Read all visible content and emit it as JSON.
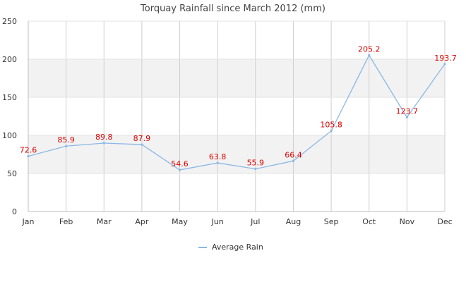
{
  "chart_data": {
    "type": "line",
    "title": "Torquay Rainfall since March 2012 (mm)",
    "xlabel": "",
    "ylabel": "",
    "categories": [
      "Jan",
      "Feb",
      "Mar",
      "Apr",
      "May",
      "Jun",
      "Jul",
      "Aug",
      "Sep",
      "Oct",
      "Nov",
      "Dec"
    ],
    "series": [
      {
        "name": "Average Rain",
        "values": [
          72.6,
          85.9,
          89.8,
          87.9,
          54.6,
          63.8,
          55.9,
          66.4,
          105.8,
          205.2,
          123.7,
          193.7
        ],
        "color": "#8ab8e6"
      }
    ],
    "ylim": [
      0,
      250
    ],
    "yticks": [
      0,
      50,
      100,
      150,
      200,
      250
    ],
    "grid": true,
    "alternate_band_color": "#f2f2f2",
    "label_color": "#e00000",
    "legend": "bottom-center"
  }
}
